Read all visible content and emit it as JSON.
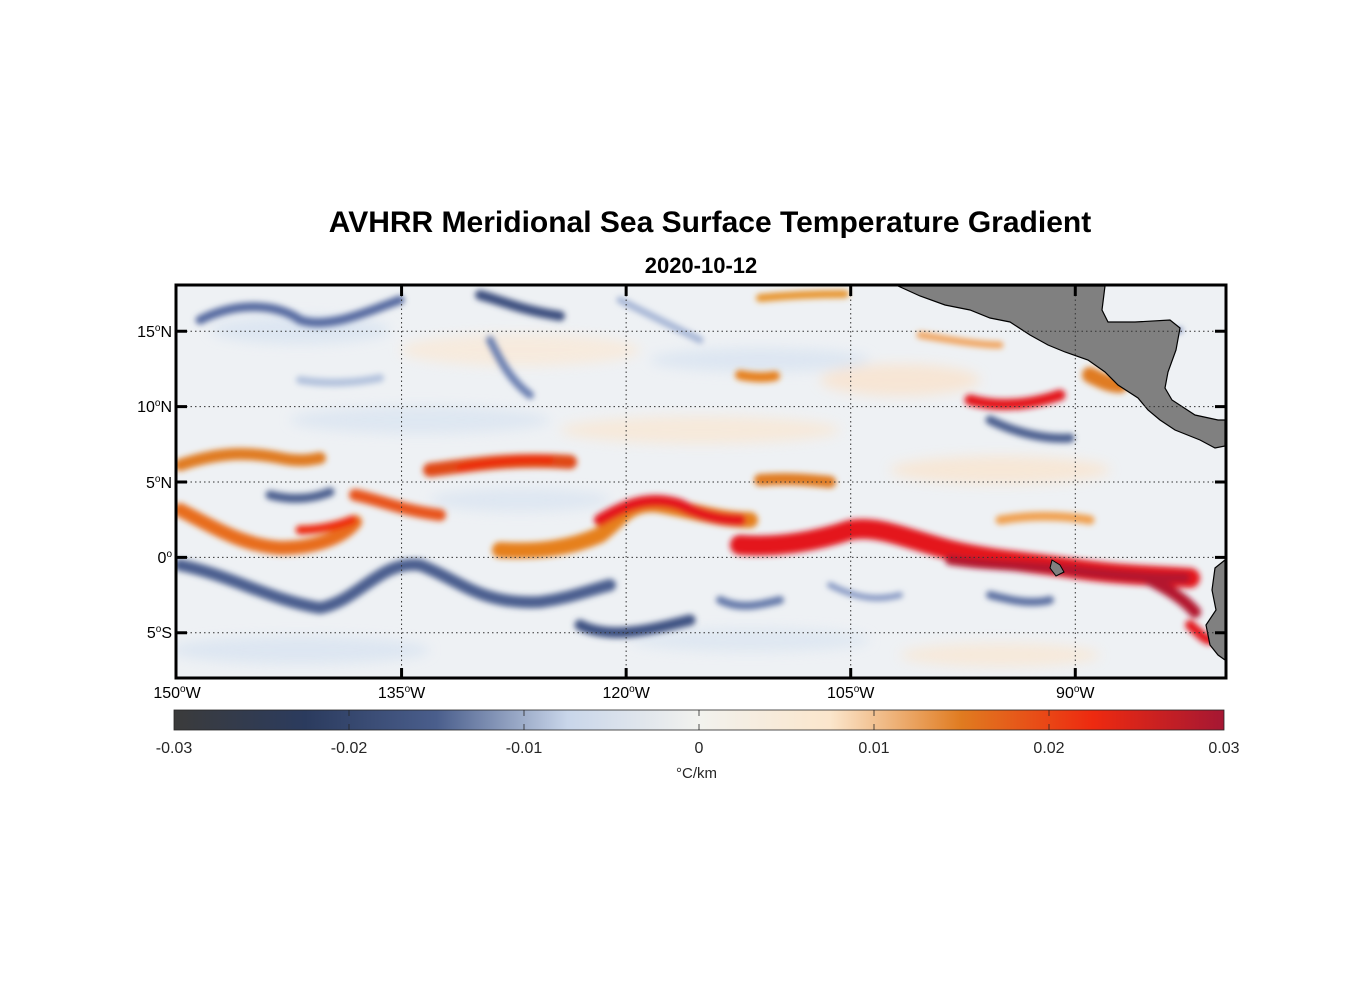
{
  "title": "AVHRR Meridional Sea Surface Temperature Gradient",
  "subtitle": "2020-10-12",
  "map": {
    "extent": {
      "lon": [
        -150,
        -80
      ],
      "lat": [
        -8,
        18
      ]
    },
    "longitude_ticks": [
      {
        "value": -150,
        "num": "150",
        "suffix": "W"
      },
      {
        "value": -135,
        "num": "135",
        "suffix": "W"
      },
      {
        "value": -120,
        "num": "120",
        "suffix": "W"
      },
      {
        "value": -105,
        "num": "105",
        "suffix": "W"
      },
      {
        "value": -90,
        "num": "90",
        "suffix": "W"
      }
    ],
    "latitude_ticks": [
      {
        "value": 15,
        "num": "15",
        "suffix": "N"
      },
      {
        "value": 10,
        "num": "10",
        "suffix": "N"
      },
      {
        "value": 5,
        "num": "5",
        "suffix": "N"
      },
      {
        "value": 0,
        "num": "0",
        "suffix": ""
      },
      {
        "value": -5,
        "num": "5",
        "suffix": "S"
      }
    ],
    "degree_symbol": "o",
    "land_color": "#808080",
    "grid": "dotted"
  },
  "colorbar": {
    "range": [
      -0.03,
      0.03
    ],
    "tick_labels": [
      "-0.03",
      "-0.02",
      "-0.01",
      "0",
      "0.01",
      "0.02",
      "0.03"
    ],
    "unit": "°C/km",
    "colors": [
      "#3b3b3b",
      "#2b3b5e",
      "#4a5e8c",
      "#c9d6ea",
      "#f2f2ee",
      "#fbe6cc",
      "#e07b20",
      "#ee2a10",
      "#a51733"
    ]
  }
}
